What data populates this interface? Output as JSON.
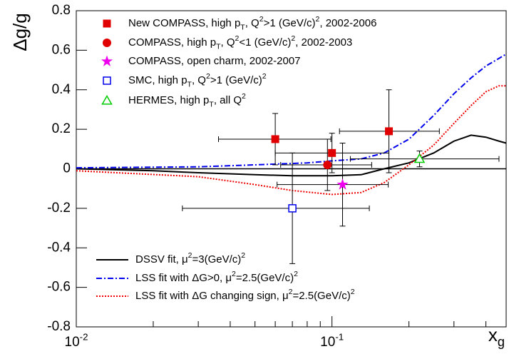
{
  "chart_data": {
    "type": "scatter",
    "y_label": "Δg/g",
    "x_label": [
      "x",
      {
        "sub": "g"
      }
    ],
    "log_x": true,
    "xlim": [
      0.01,
      0.48
    ],
    "ylim": [
      -0.8,
      0.8
    ],
    "xticks": [
      {
        "value": 0.01,
        "label": [
          "10",
          {
            "sup": "-2"
          }
        ]
      },
      {
        "value": 0.1,
        "label": [
          "10",
          {
            "sup": "-1"
          }
        ]
      }
    ],
    "xminorticks": [
      0.02,
      0.03,
      0.04,
      0.05,
      0.06,
      0.07,
      0.08,
      0.09,
      0.2,
      0.3,
      0.4
    ],
    "yticks": [
      -0.8,
      -0.6,
      -0.4,
      -0.2,
      0,
      0.2,
      0.4,
      0.6,
      0.8
    ],
    "series": [
      {
        "name": [
          "New COMPASS, high p",
          {
            "sub": "T"
          },
          ", Q",
          {
            "sup": "2"
          },
          ">1 (GeV/c)",
          {
            "sup": "2"
          },
          ", 2002-2006"
        ],
        "marker": "square",
        "filled": true,
        "color": "#e00000",
        "x": [
          0.06,
          0.1,
          0.167
        ],
        "values": [
          0.15,
          0.08,
          0.19
        ],
        "xmin": [
          0.036,
          0.06,
          0.107
        ],
        "xmax": [
          0.099,
          0.167,
          0.263
        ],
        "yerr": [
          0.13,
          0.1,
          0.21
        ]
      },
      {
        "name": [
          "COMPASS, high p",
          {
            "sub": "T"
          },
          ", Q",
          {
            "sup": "2"
          },
          "<1 (GeV/c)",
          {
            "sup": "2"
          },
          ", 2002-2003"
        ],
        "marker": "circle",
        "filled": true,
        "color": "#e00000",
        "x": [
          0.096
        ],
        "values": [
          0.02
        ],
        "xmin": [
          0.063
        ],
        "xmax": [
          0.143
        ],
        "yerr": [
          0.13
        ]
      },
      {
        "name": [
          "COMPASS, open charm, 2002-2007"
        ],
        "marker": "star",
        "filled": true,
        "color": "#ee00ee",
        "x": [
          0.11
        ],
        "values": [
          -0.08
        ],
        "xmin": [
          0.061
        ],
        "xmax": [
          0.166
        ],
        "yerr": [
          0.21
        ]
      },
      {
        "name": [
          "SMC, high p",
          {
            "sub": "T"
          },
          ", Q",
          {
            "sup": "2"
          },
          ">1 (GeV/c)",
          {
            "sup": "2"
          }
        ],
        "marker": "square",
        "filled": false,
        "color": "#0000ee",
        "x": [
          0.07
        ],
        "values": [
          -0.2
        ],
        "xmin": [
          0.026
        ],
        "xmax": [
          0.14
        ],
        "yerr": [
          0.28
        ]
      },
      {
        "name": [
          "HERMES, high p",
          {
            "sub": "T"
          },
          ", all Q",
          {
            "sup": "2"
          }
        ],
        "marker": "triangle",
        "filled": false,
        "color": "#00cc00",
        "x": [
          0.22
        ],
        "values": [
          0.05
        ],
        "xmin": [
          0.118
        ],
        "xmax": [
          0.45
        ],
        "yerr": [
          0.04
        ]
      }
    ],
    "curves": [
      {
        "name": [
          "DSSV fit, μ",
          {
            "sup": "2"
          },
          "=3(GeV/c)",
          {
            "sup": "2"
          }
        ],
        "color": "#000000",
        "dash": "none",
        "x": [
          0.01,
          0.02,
          0.03,
          0.05,
          0.07,
          0.1,
          0.13,
          0.16,
          0.2,
          0.25,
          0.3,
          0.35,
          0.4,
          0.45,
          0.48
        ],
        "values": [
          0,
          -0.01,
          -0.02,
          -0.03,
          -0.035,
          -0.035,
          -0.03,
          0,
          0.03,
          0.08,
          0.14,
          0.17,
          0.16,
          0.14,
          0.13
        ]
      },
      {
        "name": [
          "LSS fit with ΔG>0, μ",
          {
            "sup": "2"
          },
          "=2.5(GeV/c)",
          {
            "sup": "2"
          }
        ],
        "color": "#0000ee",
        "dash": "8 3 2 3",
        "x": [
          0.01,
          0.03,
          0.05,
          0.08,
          0.1,
          0.13,
          0.16,
          0.2,
          0.25,
          0.3,
          0.35,
          0.4,
          0.48
        ],
        "values": [
          0.005,
          0.01,
          0.02,
          0.03,
          0.04,
          0.05,
          0.08,
          0.15,
          0.27,
          0.38,
          0.46,
          0.52,
          0.58
        ]
      },
      {
        "name": [
          "LSS fit with ΔG changing sign, μ",
          {
            "sup": "2"
          },
          "=2.5(GeV/c)",
          {
            "sup": "2"
          }
        ],
        "color": "#ee0000",
        "dash": "2 2",
        "x": [
          0.01,
          0.03,
          0.05,
          0.07,
          0.1,
          0.13,
          0.16,
          0.2,
          0.25,
          0.3,
          0.35,
          0.4,
          0.45,
          0.48
        ],
        "values": [
          -0.01,
          -0.04,
          -0.08,
          -0.11,
          -0.13,
          -0.12,
          -0.07,
          0.02,
          0.12,
          0.23,
          0.32,
          0.39,
          0.42,
          0.42
        ]
      }
    ]
  }
}
